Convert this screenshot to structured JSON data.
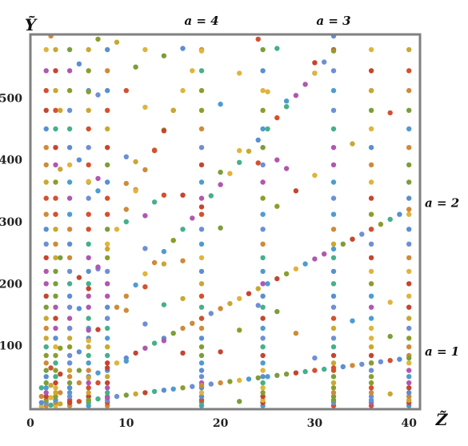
{
  "chart_data": {
    "type": "scatter",
    "xlabel": "Z̃",
    "ylabel": "Ỹ",
    "xlim": [
      0,
      41
    ],
    "ylim": [
      0,
      600
    ],
    "x_ticks": [
      "0",
      "10",
      "20",
      "30",
      "40"
    ],
    "x_tick_values": [
      0,
      10,
      20,
      30,
      40
    ],
    "y_ticks": [
      "100",
      "200",
      "300",
      "400",
      "500"
    ],
    "y_tick_values": [
      100,
      200,
      300,
      400,
      500
    ],
    "grid": false,
    "legend": "none",
    "annotations": [
      {
        "text": "a = 4",
        "anchor": "top",
        "x": 18
      },
      {
        "text": "a = 3",
        "anchor": "top",
        "x": 32
      },
      {
        "text": "a = 2",
        "anchor": "right",
        "y": 320
      },
      {
        "text": "a = 1",
        "anchor": "right",
        "y": 80
      }
    ],
    "colors": [
      "#cf8a3a",
      "#5a8fd0",
      "#d4502f",
      "#c9a832",
      "#8a9e2c",
      "#6d8fd6",
      "#b057b0",
      "#45b08a",
      "#e0b43c",
      "#c5452f",
      "#7b9e3a",
      "#4f9bd1"
    ],
    "line_series": [
      {
        "slope": 2,
        "x_from": 1,
        "x_to": 40
      },
      {
        "slope": 8,
        "x_from": 1,
        "x_to": 40
      },
      {
        "slope": 18,
        "x_from": 1,
        "x_to": 32
      },
      {
        "slope": 32,
        "x_from": 1,
        "x_to": 18
      }
    ],
    "vertical_series": [
      {
        "x": 1.5
      },
      {
        "x": 2.5
      },
      {
        "x": 4
      },
      {
        "x": 6
      },
      {
        "x": 8
      },
      {
        "x": 18
      },
      {
        "x": 24.5
      },
      {
        "x": 32
      },
      {
        "x": 36
      },
      {
        "x": 40
      }
    ],
    "vertical_y_values": [
      3,
      8,
      12,
      18,
      24,
      32,
      40,
      50,
      60,
      72,
      84,
      98,
      112,
      128,
      144,
      162,
      180,
      200,
      220,
      242,
      264,
      288,
      312,
      338,
      364,
      392,
      420,
      450,
      480,
      512,
      544,
      578
    ],
    "scatter_points": [
      {
        "x": 11,
        "y": 550
      },
      {
        "x": 14,
        "y": 568
      },
      {
        "x": 16,
        "y": 580
      },
      {
        "x": 22,
        "y": 540
      },
      {
        "x": 12,
        "y": 485
      },
      {
        "x": 14,
        "y": 447
      },
      {
        "x": 13,
        "y": 415
      },
      {
        "x": 15,
        "y": 480
      },
      {
        "x": 20,
        "y": 490
      },
      {
        "x": 25,
        "y": 510
      },
      {
        "x": 22,
        "y": 415
      },
      {
        "x": 20,
        "y": 380
      },
      {
        "x": 24,
        "y": 395
      },
      {
        "x": 26,
        "y": 400
      },
      {
        "x": 27,
        "y": 386
      },
      {
        "x": 30,
        "y": 375
      },
      {
        "x": 28,
        "y": 350
      },
      {
        "x": 26,
        "y": 325
      },
      {
        "x": 34,
        "y": 426
      },
      {
        "x": 38,
        "y": 476
      },
      {
        "x": 36,
        "y": 512
      },
      {
        "x": 30,
        "y": 540
      },
      {
        "x": 27,
        "y": 495
      },
      {
        "x": 11,
        "y": 350
      },
      {
        "x": 13,
        "y": 332
      },
      {
        "x": 14,
        "y": 343
      },
      {
        "x": 15,
        "y": 270
      },
      {
        "x": 16,
        "y": 343
      },
      {
        "x": 12,
        "y": 310
      },
      {
        "x": 10,
        "y": 300
      },
      {
        "x": 12,
        "y": 257
      },
      {
        "x": 14,
        "y": 232
      },
      {
        "x": 20,
        "y": 290
      },
      {
        "x": 16,
        "y": 237
      },
      {
        "x": 12,
        "y": 195
      },
      {
        "x": 14,
        "y": 166
      },
      {
        "x": 10,
        "y": 157
      },
      {
        "x": 12,
        "y": 135
      },
      {
        "x": 16,
        "y": 176
      },
      {
        "x": 20,
        "y": 90
      },
      {
        "x": 22,
        "y": 125
      },
      {
        "x": 24,
        "y": 165
      },
      {
        "x": 26,
        "y": 155
      },
      {
        "x": 28,
        "y": 120
      },
      {
        "x": 30,
        "y": 80
      },
      {
        "x": 34,
        "y": 140
      },
      {
        "x": 38,
        "y": 170
      },
      {
        "x": 38,
        "y": 115
      },
      {
        "x": 38,
        "y": 22
      },
      {
        "x": 22,
        "y": 10
      },
      {
        "x": 10,
        "y": 75
      },
      {
        "x": 14,
        "y": 108
      },
      {
        "x": 16,
        "y": 88
      },
      {
        "x": 6,
        "y": 510
      },
      {
        "x": 7,
        "y": 505
      },
      {
        "x": 10,
        "y": 512
      },
      {
        "x": 10,
        "y": 405
      },
      {
        "x": 11,
        "y": 397
      },
      {
        "x": 7,
        "y": 350
      },
      {
        "x": 6,
        "y": 365
      },
      {
        "x": 10,
        "y": 362
      },
      {
        "x": 3,
        "y": 385
      },
      {
        "x": 5,
        "y": 400
      },
      {
        "x": 7,
        "y": 370
      },
      {
        "x": 7,
        "y": 227
      },
      {
        "x": 3,
        "y": 242
      },
      {
        "x": 5,
        "y": 210
      },
      {
        "x": 6,
        "y": 125
      },
      {
        "x": 5,
        "y": 60
      },
      {
        "x": 7,
        "y": 40
      },
      {
        "x": 3,
        "y": 480
      },
      {
        "x": 5,
        "y": 555
      },
      {
        "x": 2,
        "y": 600
      },
      {
        "x": 7,
        "y": 595
      },
      {
        "x": 9,
        "y": 590
      },
      {
        "x": 24,
        "y": 595
      },
      {
        "x": 26,
        "y": 580
      },
      {
        "x": 32,
        "y": 600
      },
      {
        "x": 30,
        "y": 557
      },
      {
        "x": 12,
        "y": 578
      }
    ]
  }
}
